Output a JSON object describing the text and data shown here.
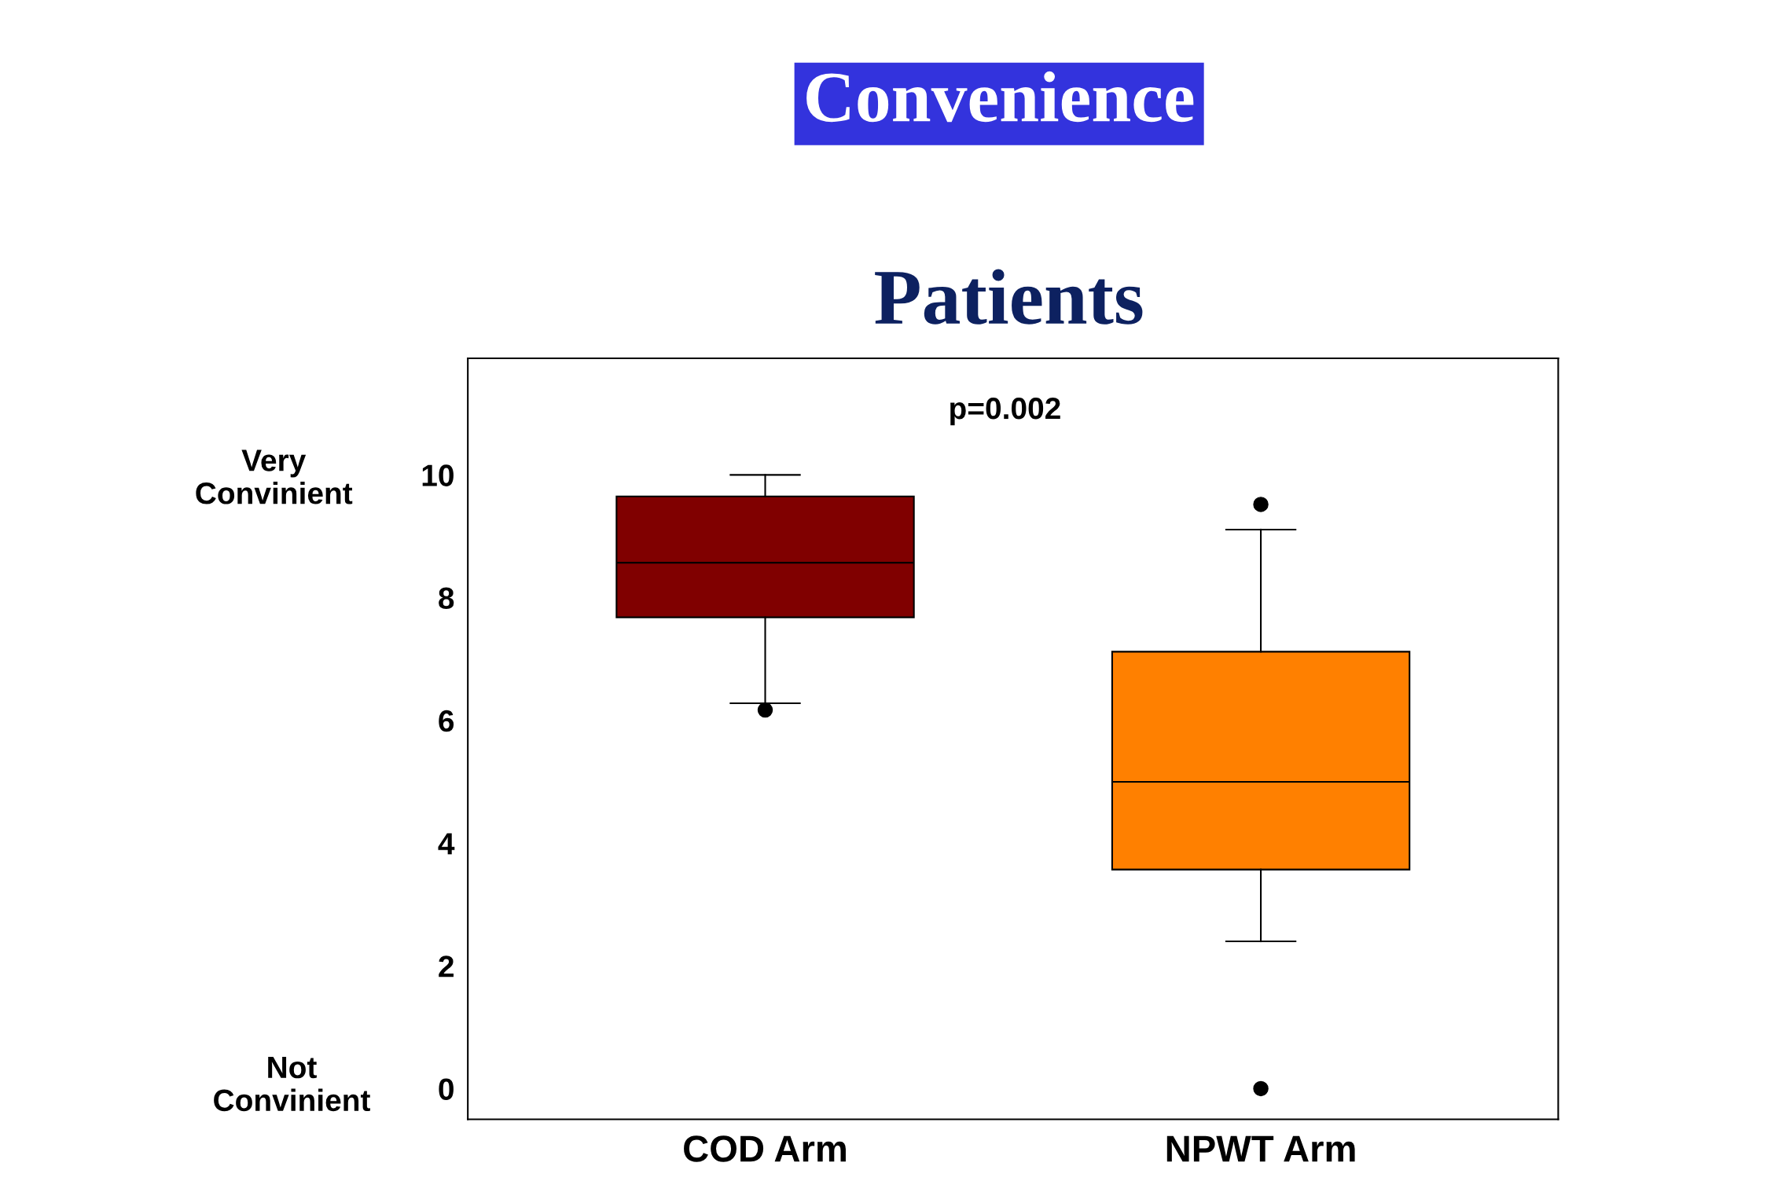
{
  "chart_data": {
    "type": "box",
    "title": "Convenience",
    "subtitle": "Patients",
    "categories": [
      "COD Arm",
      "NPWT Arm"
    ],
    "boxes": [
      {
        "low": 6.28,
        "q1": 7.68,
        "median": 8.57,
        "q3": 9.65,
        "high": 10,
        "outliers": [
          6.17
        ]
      },
      {
        "low": 2.4,
        "q1": 3.57,
        "median": 5.0,
        "q3": 7.12,
        "high": 9.11,
        "outliers": [
          9.52,
          0
        ]
      }
    ],
    "colors": [
      "#800000",
      "#ff8000"
    ],
    "ylim": [
      -0.5,
      11.9
    ],
    "yticks": [
      0,
      2,
      4,
      6,
      8,
      10
    ],
    "grid": false,
    "annotations": [
      "p=0.002",
      "Very\nConvinient",
      "Not\nConvinient"
    ]
  }
}
